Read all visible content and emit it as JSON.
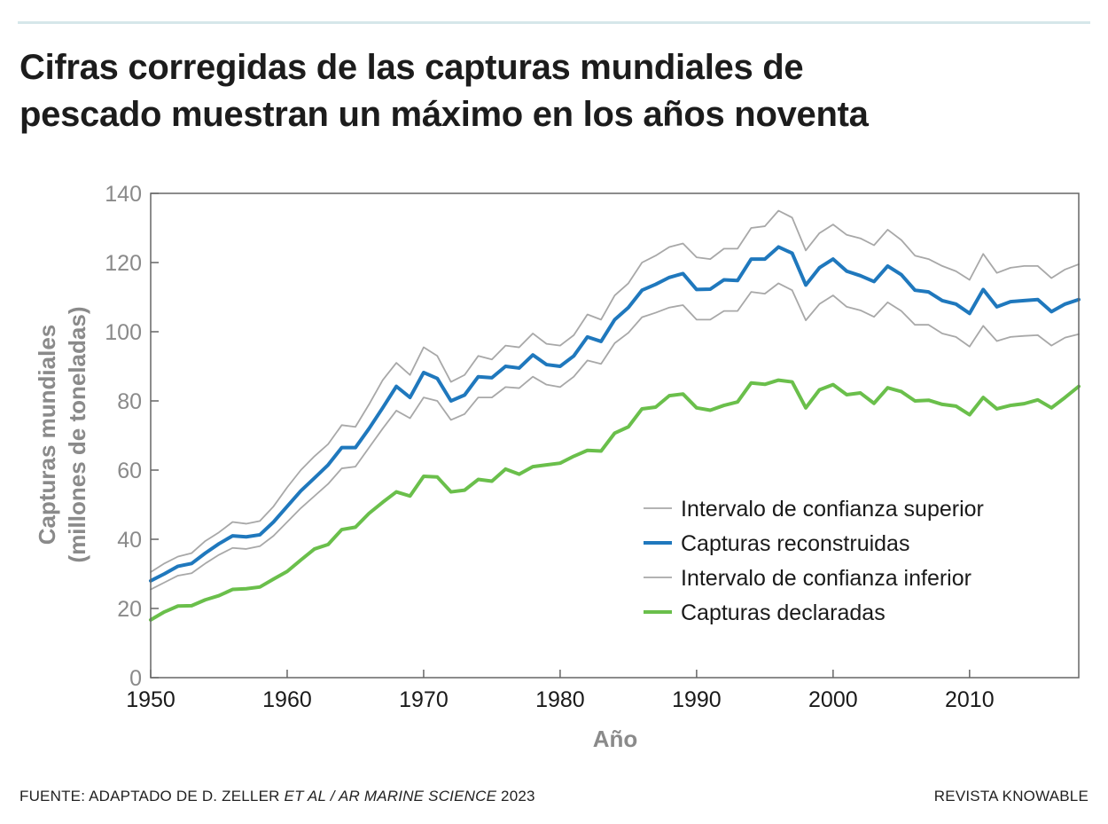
{
  "header": {
    "title_line1": "Cifras corregidas de las capturas mundiales de",
    "title_line2": "pescado muestran un máximo en los años noventa"
  },
  "footer": {
    "source_prefix": "FUENTE: ADAPTADO DE D. ZELLER ",
    "source_italic": "ET AL / AR MARINE SCIENCE",
    "source_year": " 2023",
    "credit": "REVISTA KNOWABLE"
  },
  "chart_data": {
    "type": "line",
    "title": "Cifras corregidas de las capturas mundiales de pescado muestran un máximo en los años noventa",
    "xlabel": "Año",
    "ylabel_line1": "Capturas mundiales",
    "ylabel_line2": "(millones de toneladas)",
    "xlim": [
      1950,
      2018
    ],
    "ylim": [
      0,
      140
    ],
    "xticks": [
      1950,
      1960,
      1970,
      1980,
      1990,
      2000,
      2010
    ],
    "yticks": [
      0,
      20,
      40,
      60,
      80,
      100,
      120,
      140
    ],
    "grid": false,
    "legend_position": "bottom-right",
    "colors": {
      "upper": "#a8a8a8",
      "reconstructed": "#1f78bd",
      "lower": "#a8a8a8",
      "reported": "#6abf4b",
      "axis": "#666666",
      "axis_text": "#1a1a1a",
      "label_text": "#8a8a8a"
    },
    "x": [
      1950,
      1951,
      1952,
      1953,
      1954,
      1955,
      1956,
      1957,
      1958,
      1959,
      1960,
      1961,
      1962,
      1963,
      1964,
      1965,
      1966,
      1967,
      1968,
      1969,
      1970,
      1971,
      1972,
      1973,
      1974,
      1975,
      1976,
      1977,
      1978,
      1979,
      1980,
      1981,
      1982,
      1983,
      1984,
      1985,
      1986,
      1987,
      1988,
      1989,
      1990,
      1991,
      1992,
      1993,
      1994,
      1995,
      1996,
      1997,
      1998,
      1999,
      2000,
      2001,
      2002,
      2003,
      2004,
      2005,
      2006,
      2007,
      2008,
      2009,
      2010,
      2011,
      2012,
      2013,
      2014,
      2015,
      2016,
      2017,
      2018
    ],
    "series": [
      {
        "key": "upper",
        "name": "Intervalo de confianza superior",
        "values": [
          30.5,
          33,
          35,
          36,
          39.5,
          42,
          45,
          44.5,
          45.3,
          49.5,
          55,
          60,
          64,
          67.5,
          73,
          72.5,
          79,
          86,
          91,
          87.5,
          95.5,
          93,
          85.5,
          87.5,
          93,
          92,
          96,
          95.5,
          99.5,
          96.5,
          96,
          99,
          105,
          103.5,
          110.5,
          114,
          120,
          122,
          124.5,
          125.5,
          121.5,
          121,
          124,
          124,
          130,
          130.5,
          135,
          133,
          123.5,
          128.5,
          131,
          128,
          127,
          125,
          129.5,
          126.5,
          122,
          121,
          119,
          117.5,
          115,
          122.5,
          117,
          118.5,
          119,
          119,
          115.5,
          118,
          119.5
        ]
      },
      {
        "key": "reconstructed",
        "name": "Capturas reconstruidas",
        "values": [
          28,
          30,
          32.2,
          33,
          36,
          38.7,
          41,
          40.7,
          41.3,
          45,
          49.5,
          54,
          57.7,
          61.5,
          66.5,
          66.5,
          72,
          78,
          84.2,
          81,
          88.2,
          86.5,
          80,
          81.7,
          87,
          86.7,
          90,
          89.5,
          93.3,
          90.5,
          90,
          93,
          98.5,
          97.2,
          103.5,
          107,
          112,
          113.7,
          115.7,
          116.8,
          112.2,
          112.3,
          115,
          114.8,
          121,
          121,
          124.5,
          122.7,
          113.5,
          118.5,
          121,
          117.5,
          116.2,
          114.5,
          119,
          116.5,
          112,
          111.5,
          109,
          108,
          105.3,
          112.2,
          107.2,
          108.7,
          109,
          109.3,
          105.8,
          108,
          109.3
        ]
      },
      {
        "key": "lower",
        "name": "Intervalo de confianza inferior",
        "values": [
          25.5,
          27.5,
          29.5,
          30.2,
          33,
          35.5,
          37.5,
          37.2,
          38,
          41,
          45,
          49,
          52.5,
          56,
          60.5,
          61,
          66.5,
          72,
          77.2,
          75,
          81,
          80,
          74.5,
          76.2,
          81,
          81,
          84,
          83.7,
          87,
          84.7,
          84,
          87,
          91.7,
          90.7,
          96.7,
          99.7,
          104.2,
          105.5,
          107,
          107.7,
          103.5,
          103.5,
          106,
          106,
          111.5,
          111,
          114,
          112,
          103.3,
          108,
          110.5,
          107.2,
          106.2,
          104.3,
          108.5,
          106,
          102,
          102,
          99.5,
          98.5,
          95.7,
          101.7,
          97.3,
          98.5,
          98.8,
          99,
          96,
          98.3,
          99.3
        ]
      },
      {
        "key": "reported",
        "name": "Capturas declaradas",
        "values": [
          16.7,
          19,
          20.7,
          20.8,
          22.5,
          23.7,
          25.5,
          25.7,
          26.2,
          28.5,
          30.7,
          34,
          37.2,
          38.5,
          42.8,
          43.5,
          47.5,
          50.7,
          53.7,
          52.5,
          58.2,
          58,
          53.7,
          54.2,
          57.3,
          56.8,
          60.3,
          58.8,
          61,
          61.5,
          62,
          64,
          65.7,
          65.5,
          70.7,
          72.5,
          77.7,
          78.2,
          81.5,
          82,
          78,
          77.3,
          78.7,
          79.7,
          85.2,
          84.8,
          86,
          85.5,
          78,
          83.2,
          84.7,
          81.8,
          82.3,
          79.3,
          83.8,
          82.7,
          80,
          80.2,
          79,
          78.5,
          76,
          81,
          77.7,
          78.7,
          79.2,
          80.3,
          78,
          81,
          84.2
        ]
      }
    ],
    "legend_order": [
      "upper",
      "reconstructed",
      "lower",
      "reported"
    ]
  }
}
